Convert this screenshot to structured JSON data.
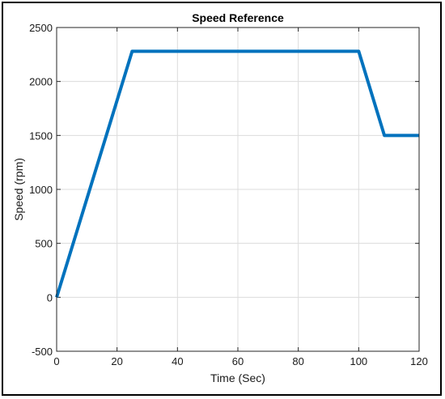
{
  "chart_data": {
    "type": "line",
    "title": "Speed Reference",
    "xlabel": "Time (Sec)",
    "ylabel": "Speed (rpm)",
    "xlim": [
      0,
      120
    ],
    "ylim": [
      -500,
      2500
    ],
    "xticks": [
      0,
      20,
      40,
      60,
      80,
      100,
      120
    ],
    "yticks": [
      -500,
      0,
      500,
      1000,
      1500,
      2000,
      2500
    ],
    "grid": true,
    "series": [
      {
        "x": [
          0,
          25,
          100,
          108.5,
          120
        ],
        "y": [
          0,
          2280,
          2280,
          1500,
          1500
        ],
        "color": "#0072BD"
      }
    ]
  }
}
